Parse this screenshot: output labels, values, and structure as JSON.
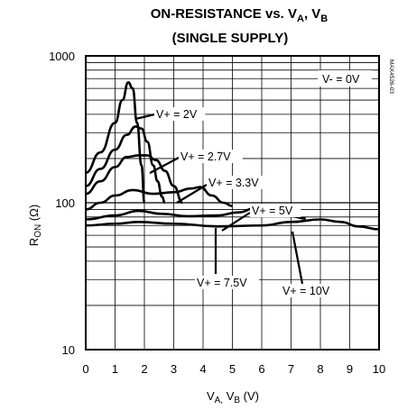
{
  "chart_data": {
    "type": "line",
    "title_line1_main": "ON-RESISTANCE vs. V",
    "title_line1_sub_a": "A",
    "title_line1_sep": ", V",
    "title_line1_sub_b": "B",
    "title_line2": "(SINGLE SUPPLY)",
    "xlabel_main": "V",
    "xlabel_sub_a": "A,",
    "xlabel_mid": " V",
    "xlabel_sub_b": "B",
    "xlabel_unit": " (V)",
    "ylabel_main": "R",
    "ylabel_sub": "ON",
    "ylabel_unit": " (Ω)",
    "x_ticks": [
      "0",
      "1",
      "2",
      "3",
      "4",
      "5",
      "6",
      "7",
      "8",
      "9",
      "10"
    ],
    "y_ticks": [
      "10",
      "100",
      "1000"
    ],
    "xlim": [
      0,
      10
    ],
    "ylim": [
      10,
      1000
    ],
    "y_scale": "log",
    "grid": true,
    "condition_label": "V- = 0V",
    "code_label": "MAX4526-03",
    "series": [
      {
        "name": "V+ = 2V",
        "x": [
          0,
          0.5,
          1.0,
          1.25,
          1.45,
          1.6,
          1.75,
          1.9,
          2.0
        ],
        "y": [
          160,
          220,
          350,
          500,
          660,
          600,
          350,
          180,
          100
        ]
      },
      {
        "name": "V+ = 2.7V",
        "x": [
          0,
          0.5,
          1.0,
          1.4,
          1.7,
          1.9,
          2.1,
          2.3,
          2.45,
          2.6,
          2.7
        ],
        "y": [
          130,
          170,
          230,
          290,
          330,
          320,
          260,
          180,
          140,
          110,
          100
        ]
      },
      {
        "name": "V+ = 3.3V",
        "x": [
          0,
          0.5,
          1.0,
          1.4,
          1.8,
          2.1,
          2.4,
          2.7,
          3.0,
          3.3
        ],
        "y": [
          115,
          140,
          175,
          205,
          210,
          210,
          195,
          165,
          130,
          100
        ]
      },
      {
        "name": "V+ = 5V",
        "x": [
          0,
          0.5,
          1.0,
          1.6,
          2.3,
          3.0,
          3.6,
          3.9,
          4.3,
          4.7,
          5.0
        ],
        "y": [
          90,
          100,
          112,
          122,
          115,
          118,
          125,
          128,
          112,
          100,
          95
        ]
      },
      {
        "name": "V+ = 7.5V",
        "x": [
          0,
          1.0,
          1.8,
          2.6,
          3.5,
          4.5,
          5.2,
          5.8,
          6.4,
          7.0,
          7.5
        ],
        "y": [
          77,
          82,
          88,
          84,
          81,
          82,
          86,
          92,
          87,
          81,
          78
        ]
      },
      {
        "name": "V+ = 10V",
        "x": [
          0,
          1.0,
          1.8,
          3.0,
          4.5,
          6.0,
          7.0,
          8.0,
          8.7,
          9.3,
          10.0
        ],
        "y": [
          70,
          72,
          74,
          72,
          69,
          70,
          74,
          77,
          74,
          69,
          66
        ]
      }
    ],
    "annotations": [
      {
        "text": "V+ = 2V",
        "series": 0
      },
      {
        "text": "V+ = 2.7V",
        "series": 1
      },
      {
        "text": "V+ = 3.3V",
        "series": 2
      },
      {
        "text": "V+ = 5V",
        "series": 3
      },
      {
        "text": "V+ = 7.5V",
        "series": 4
      },
      {
        "text": "V+ = 10V",
        "series": 5
      }
    ]
  }
}
